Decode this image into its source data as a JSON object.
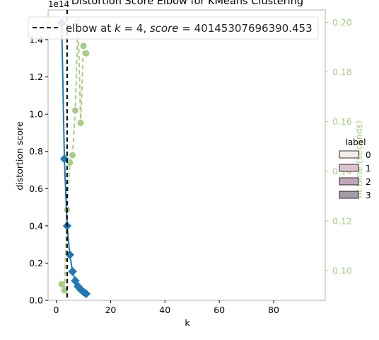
{
  "chart_data": {
    "type": "line",
    "title": "Distortion Score Elbow for KMeans Clustering",
    "xlabel": "k",
    "ylabel": "distortion score",
    "ylabel_right": "fit time (seconds)",
    "offset_text": "1e14",
    "xlim": [
      -3,
      99
    ],
    "ylim": [
      0,
      1.56
    ],
    "ylim_right": [
      0.088,
      0.205
    ],
    "x_ticks": [
      0,
      20,
      40,
      60,
      80
    ],
    "y_ticks": [
      {
        "value": 0.0,
        "label": "0.0"
      },
      {
        "value": 0.2,
        "label": "0.2"
      },
      {
        "value": 0.4,
        "label": "0.4"
      },
      {
        "value": 0.6,
        "label": "0.6"
      },
      {
        "value": 0.8,
        "label": "0.8"
      },
      {
        "value": 1.0,
        "label": "1.0"
      },
      {
        "value": 1.2,
        "label": "1.2"
      },
      {
        "value": 1.4,
        "label": "1.4"
      }
    ],
    "y_ticks_right": [
      {
        "value": 0.1,
        "label": "0.10"
      },
      {
        "value": 0.12,
        "label": "0.12"
      },
      {
        "value": 0.14,
        "label": "0.14"
      },
      {
        "value": 0.16,
        "label": "0.16"
      },
      {
        "value": 0.18,
        "label": "0.18"
      },
      {
        "value": 0.2,
        "label": "0.20"
      }
    ],
    "series": [
      {
        "axis": "left",
        "color": "#1f77b4",
        "marker": "diamond",
        "x": [
          2,
          3,
          4,
          5,
          6,
          7,
          8,
          9,
          10,
          11
        ],
        "y": [
          1.49,
          0.76,
          0.4,
          0.245,
          0.155,
          0.105,
          0.075,
          0.058,
          0.045,
          0.035
        ]
      },
      {
        "axis": "right",
        "color": "#a6cd85",
        "marker": "circle",
        "linestyle": "dashed",
        "x": [
          2,
          3,
          4,
          5,
          6,
          7,
          8,
          9,
          10,
          11
        ],
        "y": [
          0.0945,
          0.092,
          0.1245,
          0.1435,
          0.1465,
          0.1645,
          0.2005,
          0.1595,
          0.1905,
          0.1875
        ]
      }
    ],
    "elbow": {
      "k": 4,
      "legend_text": "elbow at k = 4, score = 40145307696390.453",
      "legend_prefix": "elbow at ",
      "legend_k": "k",
      "legend_mid": " = 4, ",
      "legend_score": "score",
      "legend_suffix": " = 40145307696390.453"
    },
    "hue_legend": {
      "title": "label",
      "entries": [
        {
          "label": "0",
          "color": "#f6ebe7"
        },
        {
          "label": "1",
          "color": "#dcc4cf"
        },
        {
          "label": "2",
          "color": "#c3a5bb"
        },
        {
          "label": "3",
          "color": "#a49aa8"
        }
      ]
    }
  }
}
